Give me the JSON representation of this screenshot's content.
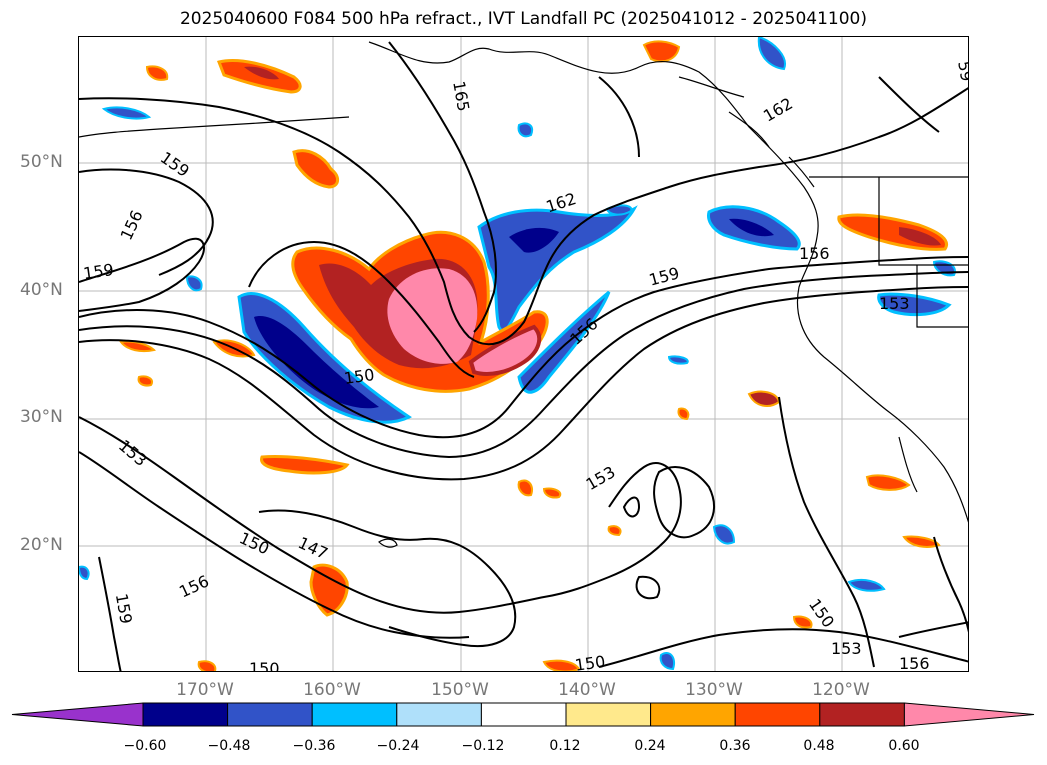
{
  "title": "2025040600 F084 500 hPa refract., IVT Landfall PC (2025041012 - 2025041100)",
  "lat_labels": [
    "50°N",
    "40°N",
    "30°N",
    "20°N"
  ],
  "lon_labels": [
    "170°W",
    "160°W",
    "150°W",
    "140°W",
    "130°W",
    "120°W"
  ],
  "contour_labels": [
    "165",
    "162",
    "162",
    "159",
    "159",
    "159",
    "156",
    "156",
    "156",
    "156",
    "156",
    "153",
    "153",
    "153",
    "153",
    "150",
    "150",
    "150",
    "150",
    "150",
    "147",
    "159",
    "59"
  ],
  "colorbar": {
    "ticks": [
      "−0.60",
      "−0.48",
      "−0.36",
      "−0.24",
      "−0.12",
      "0.12",
      "0.24",
      "0.36",
      "0.48",
      "0.60"
    ],
    "colors": [
      "#9932cc",
      "#00008b",
      "#3153c8",
      "#00bfff",
      "#afe0fa",
      "#ffffff",
      "#ffe98c",
      "#ffa500",
      "#ff4500",
      "#b22222",
      "#ff88aa"
    ]
  }
}
